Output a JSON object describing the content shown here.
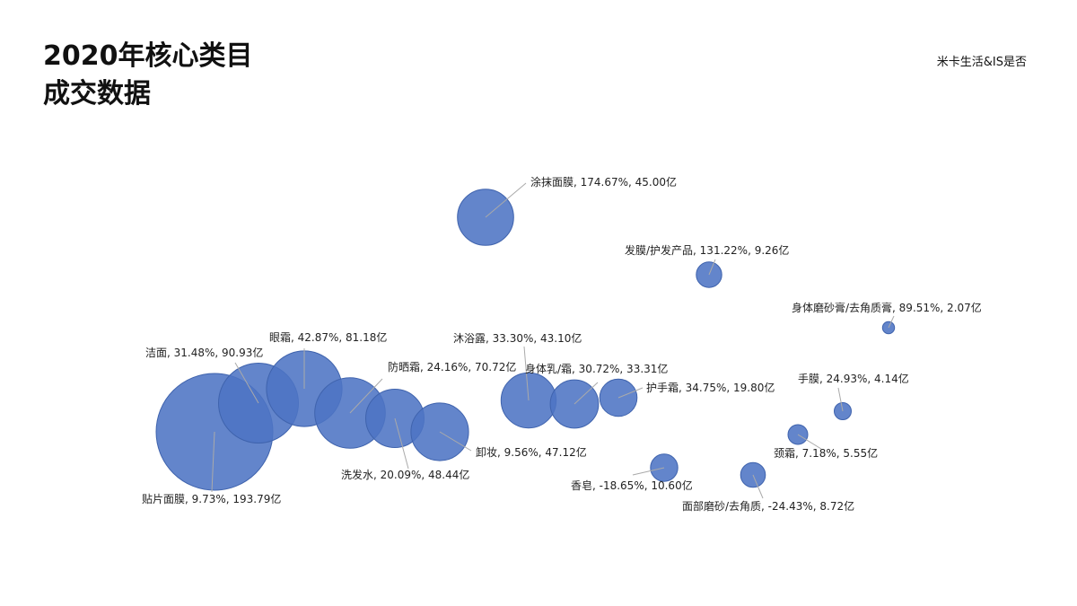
{
  "header": {
    "title_line1": "2020年核心类目",
    "title_line2": "成交数据",
    "brand": "米卡生活&IS是否"
  },
  "colors": {
    "bubble": "#4d74c4",
    "bubble_edge": "#3f63ad",
    "leader": "#aaaaaa"
  },
  "chart_data": {
    "type": "bubble",
    "title": "",
    "xlabel": "",
    "ylabel": "",
    "grid": false,
    "legend": "none",
    "series": [
      {
        "name": "贴片面膜",
        "growth_pct": 9.73,
        "value_yi": 193.79,
        "label": "贴片面膜, 9.73%, 193.79亿"
      },
      {
        "name": "洁面",
        "growth_pct": 31.48,
        "value_yi": 90.93,
        "label": "洁面, 31.48%, 90.93亿"
      },
      {
        "name": "眼霜",
        "growth_pct": 42.87,
        "value_yi": 81.18,
        "label": "眼霜, 42.87%, 81.18亿"
      },
      {
        "name": "防晒霜",
        "growth_pct": 24.16,
        "value_yi": 70.72,
        "label": "防晒霜, 24.16%, 70.72亿"
      },
      {
        "name": "洗发水",
        "growth_pct": 20.09,
        "value_yi": 48.44,
        "label": "洗发水, 20.09%, 48.44亿"
      },
      {
        "name": "卸妆",
        "growth_pct": 9.56,
        "value_yi": 47.12,
        "label": "卸妆, 9.56%, 47.12亿"
      },
      {
        "name": "沐浴露",
        "growth_pct": 33.3,
        "value_yi": 43.1,
        "label": "沐浴露, 33.30%, 43.10亿"
      },
      {
        "name": "身体乳/霜",
        "growth_pct": 30.72,
        "value_yi": 33.31,
        "label": "身体乳/霜, 30.72%, 33.31亿"
      },
      {
        "name": "护手霜",
        "growth_pct": 34.75,
        "value_yi": 19.8,
        "label": "护手霜, 34.75%, 19.80亿"
      },
      {
        "name": "涂抹面膜",
        "growth_pct": 174.67,
        "value_yi": 45.0,
        "label": "涂抹面膜, 174.67%, 45.00亿"
      },
      {
        "name": "发膜/护发产品",
        "growth_pct": 131.22,
        "value_yi": 9.26,
        "label": "发膜/护发产品, 131.22%, 9.26亿"
      },
      {
        "name": "身体磨砂膏/去角质膏",
        "growth_pct": 89.51,
        "value_yi": 2.07,
        "label": "身体磨砂膏/去角质膏, 89.51%, 2.07亿"
      },
      {
        "name": "手膜",
        "growth_pct": 24.93,
        "value_yi": 4.14,
        "label": "手膜, 24.93%, 4.14亿"
      },
      {
        "name": "颈霜",
        "growth_pct": 7.18,
        "value_yi": 5.55,
        "label": "颈霜, 7.18%, 5.55亿"
      },
      {
        "name": "香皂",
        "growth_pct": -18.65,
        "value_yi": 10.6,
        "label": "香皂, -18.65%, 10.60亿"
      },
      {
        "name": "面部磨砂/去角质",
        "growth_pct": -24.43,
        "value_yi": 8.72,
        "label": "面部磨砂/去角质, -24.43%, 8.72亿"
      }
    ]
  }
}
